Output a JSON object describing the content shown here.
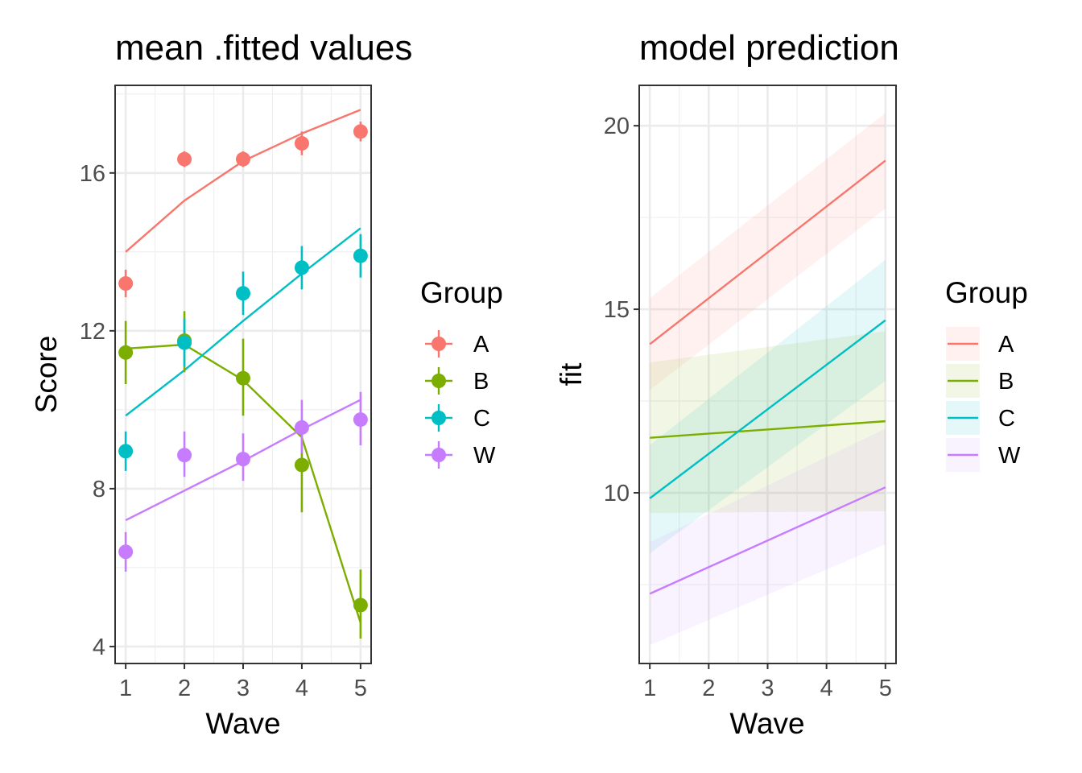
{
  "colors": {
    "A": "#F8766D",
    "B": "#7CAE00",
    "C": "#00BFC4",
    "W": "#C77CFF"
  },
  "legend": {
    "title": "Group",
    "entries": [
      "A",
      "B",
      "C",
      "W"
    ]
  },
  "chart_data": [
    {
      "type": "scatter",
      "title": "mean .fitted values",
      "xlabel": "Wave",
      "ylabel": "Score",
      "x_ticks": [
        1,
        2,
        3,
        4,
        5
      ],
      "y_ticks": [
        4,
        8,
        12,
        16
      ],
      "xlim": [
        0.82,
        5.18
      ],
      "ylim": [
        3.57,
        18.22
      ],
      "grid": true,
      "legend_position": "right",
      "x": [
        1,
        2,
        3,
        4,
        5
      ],
      "series": [
        {
          "name": "A",
          "points": [
            13.2,
            16.35,
            16.35,
            16.75,
            17.05
          ],
          "lower": [
            12.85,
            16.15,
            16.15,
            16.45,
            16.8
          ],
          "upper": [
            13.55,
            16.55,
            16.55,
            17.05,
            17.3
          ],
          "fitted": [
            14.0,
            15.3,
            16.3,
            17.0,
            17.6
          ]
        },
        {
          "name": "B",
          "points": [
            11.45,
            11.75,
            10.8,
            8.6,
            5.05
          ],
          "lower": [
            10.65,
            10.95,
            9.85,
            7.4,
            4.2
          ],
          "upper": [
            12.25,
            12.5,
            11.8,
            9.55,
            5.95
          ],
          "fitted": [
            11.55,
            11.65,
            10.75,
            9.3,
            4.6
          ]
        },
        {
          "name": "C",
          "points": [
            8.95,
            11.7,
            12.95,
            13.6,
            13.9
          ],
          "lower": [
            8.45,
            11.1,
            12.4,
            13.05,
            13.35
          ],
          "upper": [
            9.45,
            12.3,
            13.5,
            14.15,
            14.45
          ],
          "fitted": [
            9.85,
            11.0,
            12.25,
            13.45,
            14.6
          ]
        },
        {
          "name": "W",
          "points": [
            6.4,
            8.85,
            8.75,
            9.55,
            9.75
          ],
          "lower": [
            5.9,
            8.3,
            8.2,
            8.9,
            9.1
          ],
          "upper": [
            6.9,
            9.45,
            9.4,
            10.25,
            10.45
          ],
          "fitted": [
            7.2,
            7.95,
            8.7,
            9.5,
            10.25
          ]
        }
      ]
    },
    {
      "type": "line",
      "title": "model prediction",
      "xlabel": "Wave",
      "ylabel": "fit",
      "x_ticks": [
        1,
        2,
        3,
        4,
        5
      ],
      "y_ticks": [
        10,
        15,
        20
      ],
      "xlim": [
        0.82,
        5.18
      ],
      "ylim": [
        5.35,
        21.1
      ],
      "grid": true,
      "legend_position": "right",
      "x": [
        1,
        5
      ],
      "series": [
        {
          "name": "A",
          "fit": [
            14.05,
            19.05
          ],
          "lower": [
            12.8,
            17.75
          ],
          "upper": [
            15.3,
            20.35
          ]
        },
        {
          "name": "B",
          "fit": [
            11.5,
            11.95
          ],
          "lower": [
            9.45,
            9.5
          ],
          "upper": [
            13.55,
            14.4
          ]
        },
        {
          "name": "C",
          "fit": [
            9.85,
            14.7
          ],
          "lower": [
            8.35,
            13.05
          ],
          "upper": [
            11.3,
            16.35
          ]
        },
        {
          "name": "W",
          "fit": [
            7.25,
            10.15
          ],
          "lower": [
            5.85,
            8.6
          ],
          "upper": [
            8.65,
            11.75
          ]
        }
      ]
    }
  ]
}
